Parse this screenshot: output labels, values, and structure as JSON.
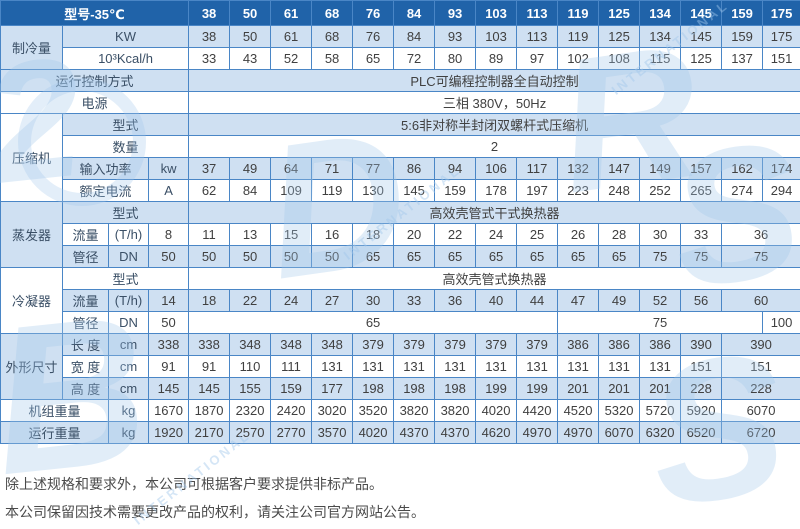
{
  "table": {
    "title": "型号-35℃",
    "models": [
      "38",
      "50",
      "61",
      "68",
      "76",
      "84",
      "93",
      "103",
      "113",
      "119",
      "125",
      "134",
      "145",
      "159",
      "175"
    ],
    "cooling": {
      "label": "制冷量",
      "kw_label": "KW",
      "kw": [
        "38",
        "50",
        "61",
        "68",
        "76",
        "84",
        "93",
        "103",
        "113",
        "119",
        "125",
        "134",
        "145",
        "159",
        "175"
      ],
      "kcal_label": "10³Kcal/h",
      "kcal": [
        "33",
        "43",
        "52",
        "58",
        "65",
        "72",
        "80",
        "89",
        "97",
        "102",
        "108",
        "115",
        "125",
        "137",
        "151"
      ]
    },
    "control": {
      "label": "运行控制方式",
      "value": "PLC可编程控制器全自动控制"
    },
    "power": {
      "label": "电源",
      "value": "三相 380V，50Hz"
    },
    "compressor": {
      "label": "压缩机",
      "type_label": "型式",
      "type_value": "5:6非对称半封闭双螺杆式压缩机",
      "qty_label": "数量",
      "qty_value": "2",
      "input_label": "输入功率",
      "input_unit": "kw",
      "input": [
        "37",
        "49",
        "64",
        "71",
        "77",
        "86",
        "94",
        "106",
        "117",
        "132",
        "147",
        "149",
        "157",
        "162",
        "174"
      ],
      "current_label": "额定电流",
      "current_unit": "A",
      "current": [
        "62",
        "84",
        "109",
        "119",
        "130",
        "145",
        "159",
        "178",
        "197",
        "223",
        "248",
        "252",
        "265",
        "274",
        "294"
      ]
    },
    "evaporator": {
      "label": "蒸发器",
      "type_label": "型式",
      "type_value": "高效壳管式干式换热器",
      "flow_label": "流量",
      "flow_unit": "(T/h)",
      "flow": [
        "8",
        "11",
        "13",
        "15",
        "16",
        "18",
        "20",
        "22",
        "24",
        "25",
        "26",
        "28",
        "30",
        "33",
        {
          "v": "36",
          "span": 2
        }
      ],
      "pipe_label": "管径",
      "pipe_unit": "DN",
      "pipe": [
        "50",
        "50",
        "50",
        "50",
        "50",
        "65",
        "65",
        "65",
        "65",
        "65",
        "65",
        "65",
        "75",
        "75",
        {
          "v": "75",
          "span": 2
        }
      ]
    },
    "condenser": {
      "label": "冷凝器",
      "type_label": "型式",
      "type_value": "高效壳管式换热器",
      "flow_label": "流量",
      "flow_unit": "(T/h)",
      "flow": [
        "14",
        "18",
        "22",
        "24",
        "27",
        "30",
        "33",
        "36",
        "40",
        "44",
        "47",
        "49",
        "52",
        "56",
        {
          "v": "60",
          "span": 2
        }
      ],
      "pipe_label": "管径",
      "pipe_unit": "DN",
      "pipe": [
        "50",
        {
          "v": "65",
          "span": 9
        },
        {
          "v": "75",
          "span": 5
        },
        "100"
      ]
    },
    "dimensions": {
      "label": "外形尺寸",
      "unit": "cm",
      "length_label": "长 度",
      "length": [
        "338",
        "338",
        "348",
        "348",
        "348",
        "379",
        "379",
        "379",
        "379",
        "379",
        "386",
        "386",
        "386",
        "390",
        {
          "v": "390",
          "span": 2
        }
      ],
      "width_label": "宽 度",
      "width": [
        "91",
        "91",
        "110",
        "111",
        "131",
        "131",
        "131",
        "131",
        "131",
        "131",
        "131",
        "131",
        "131",
        "151",
        {
          "v": "151",
          "span": 2
        }
      ],
      "height_label": "高 度",
      "height": [
        "145",
        "145",
        "155",
        "159",
        "177",
        "198",
        "198",
        "198",
        "199",
        "199",
        "201",
        "201",
        "201",
        "228",
        {
          "v": "228",
          "span": 2
        }
      ]
    },
    "unit_weight": {
      "label": "机组重量",
      "unit": "kg",
      "values": [
        "1670",
        "1870",
        "2320",
        "2420",
        "3020",
        "3520",
        "3820",
        "3820",
        "4020",
        "4420",
        "4520",
        "5320",
        "5720",
        "5920",
        {
          "v": "6070",
          "span": 2
        }
      ]
    },
    "run_weight": {
      "label": "运行重量",
      "unit": "kg",
      "values": [
        "1920",
        "2170",
        "2570",
        "2770",
        "3570",
        "4020",
        "4370",
        "4370",
        "4620",
        "4970",
        "4970",
        "6070",
        "6320",
        "6520",
        {
          "v": "6720",
          "span": 2
        }
      ]
    }
  },
  "footer": {
    "line1": "除上述规格和要求外，本公司可根据客户要求提供非标产品。",
    "line2": "本公司保留因技术需要更改产品的权利，请关注公司官方网站公告。"
  },
  "watermark": {
    "letter_1": "2",
    "letter_2": "D",
    "letter_3": "R",
    "letter_4": "S",
    "letter_5": "B",
    "letter_6": "S",
    "arc_text": "INTERNATIONAL"
  },
  "colors": {
    "header_bg": "#2063a9",
    "row_light": "#cfe0f2",
    "border": "#4a86c6",
    "header_text": "#ffffff"
  }
}
